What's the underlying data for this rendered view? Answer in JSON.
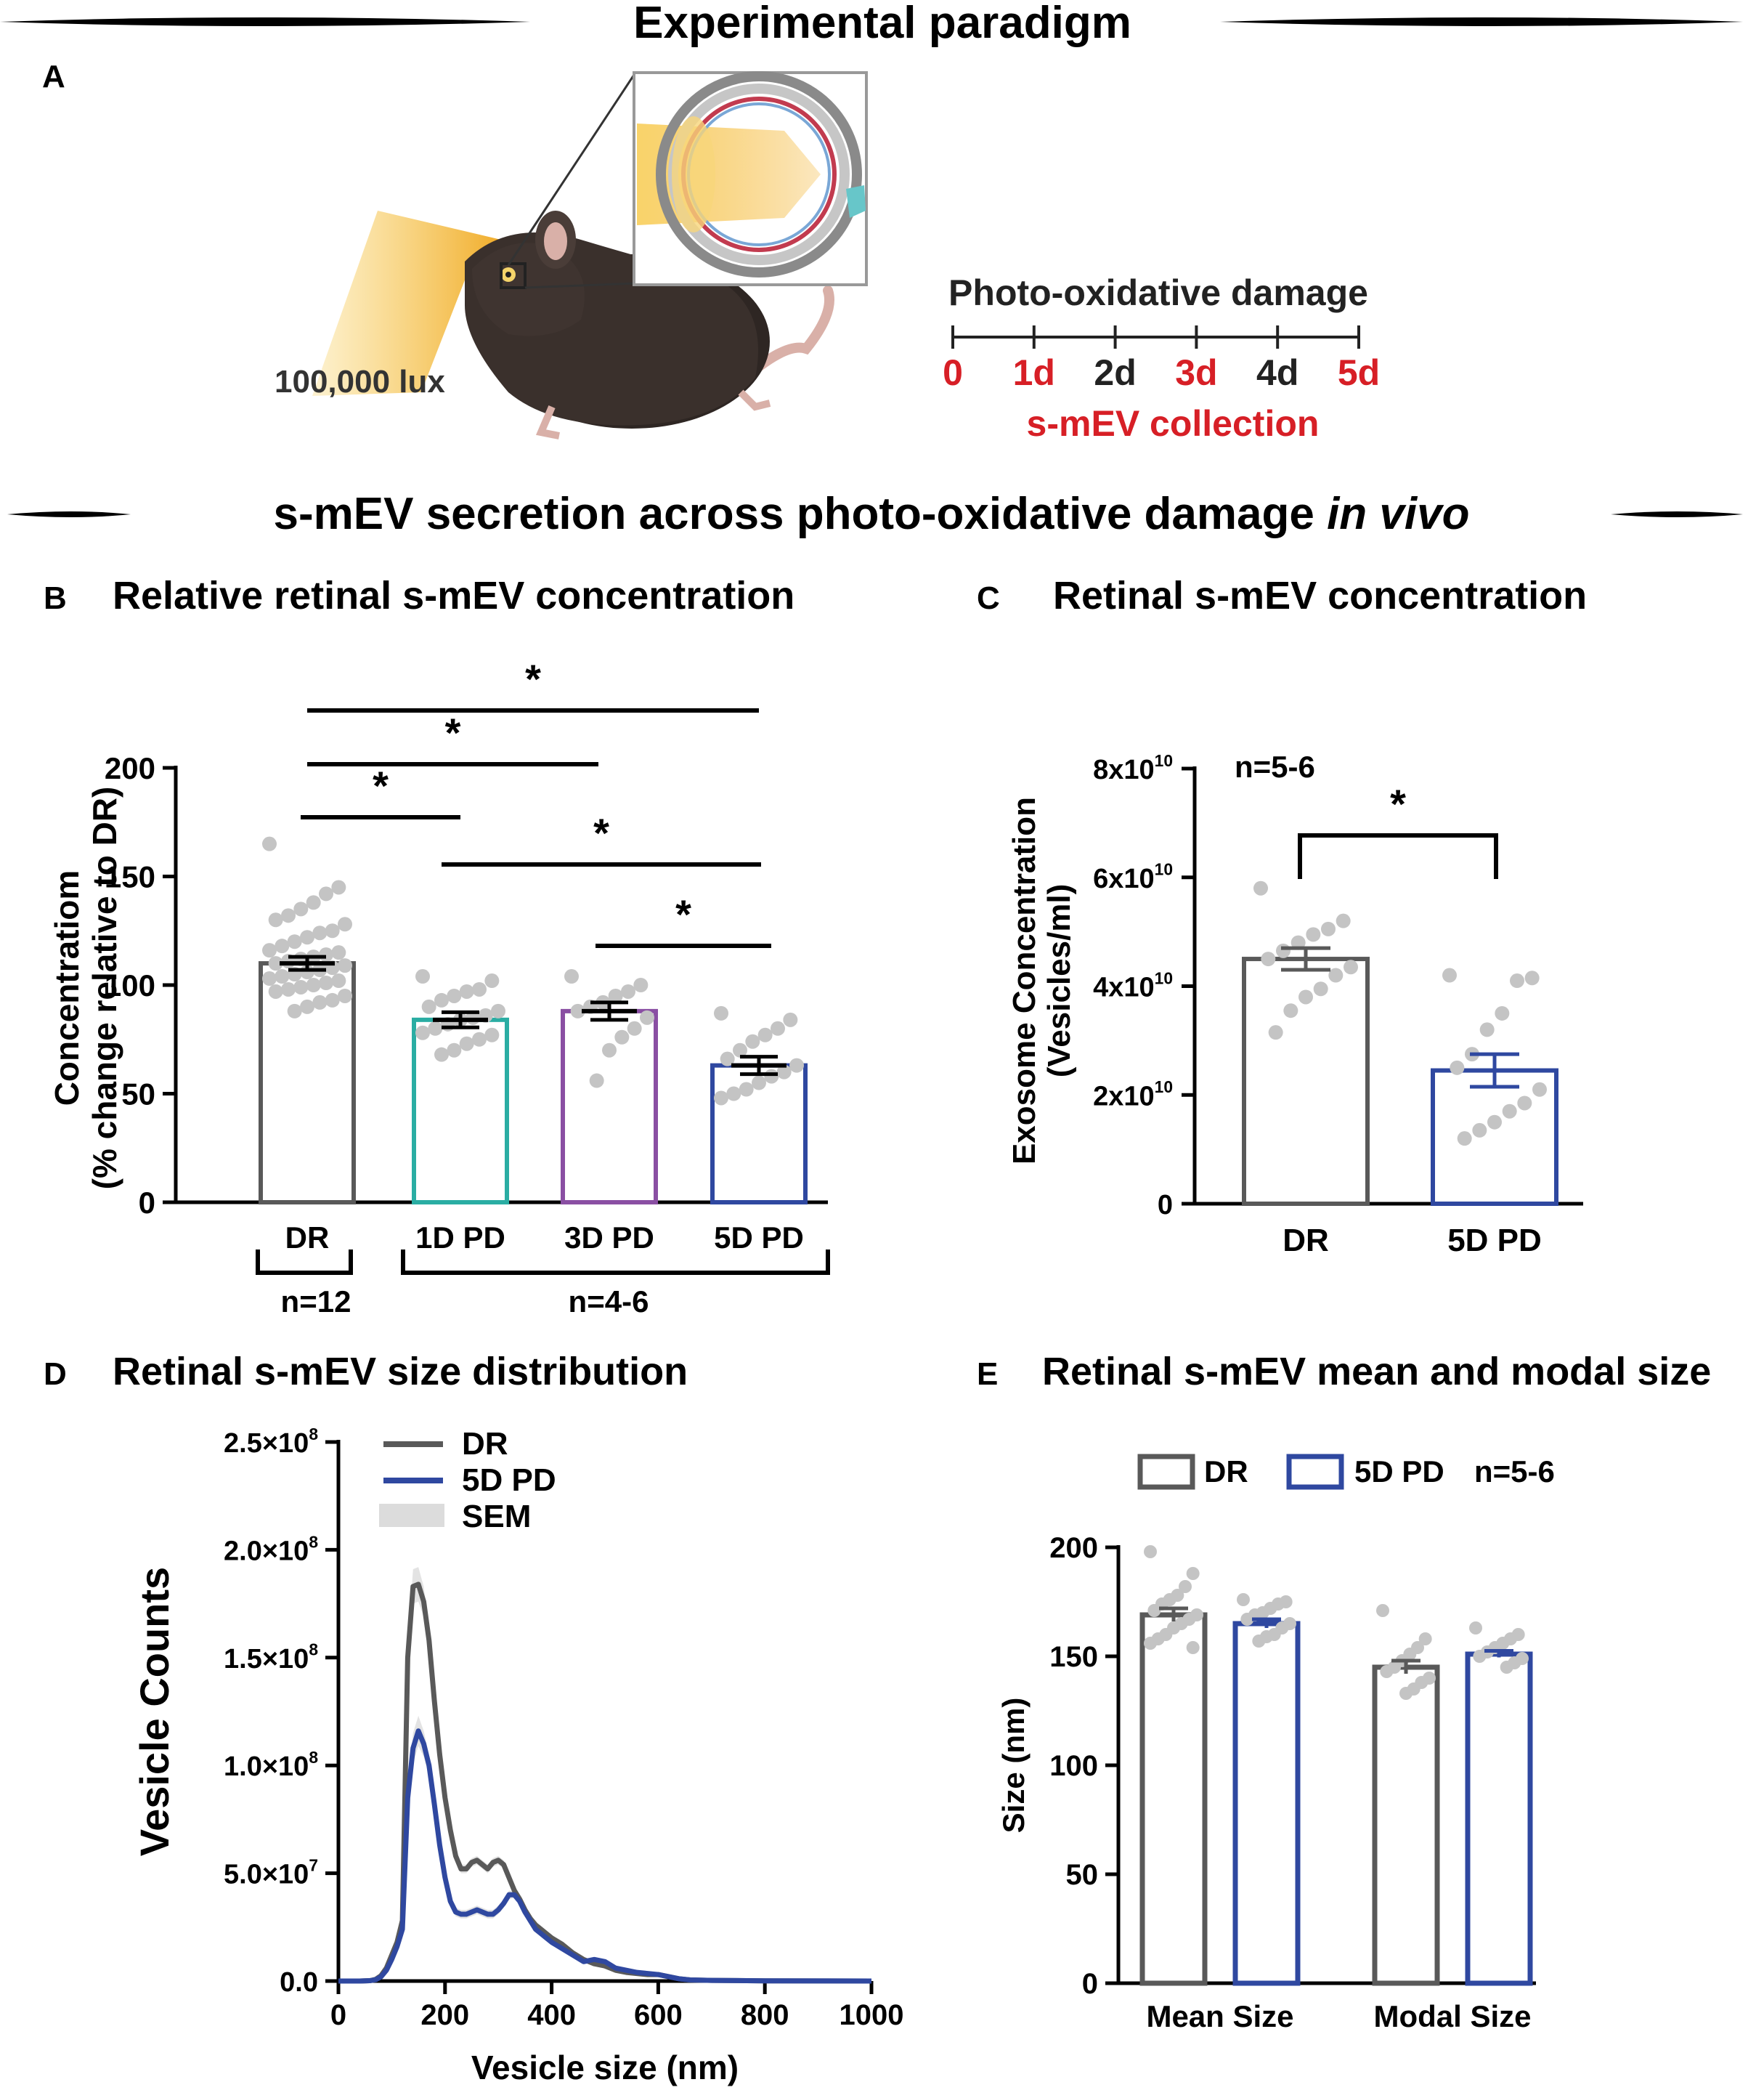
{
  "sections": {
    "top_title": "Experimental paradigm",
    "middle_title_main": "s-mEV secretion across photo-oxidative damage ",
    "middle_title_italic": "in vivo"
  },
  "panel_a": {
    "letter": "A",
    "lux_label": "100,000 lux",
    "timeline_title": "Photo-oxidative damage",
    "timeline_ticks": [
      {
        "label": "0",
        "collection": true
      },
      {
        "label": "1d",
        "collection": true
      },
      {
        "label": "2d",
        "collection": false
      },
      {
        "label": "3d",
        "collection": true
      },
      {
        "label": "4d",
        "collection": false
      },
      {
        "label": "5d",
        "collection": true
      }
    ],
    "collection_label": "s-mEV collection"
  },
  "colors": {
    "dr": "#595959",
    "pd1": "#2aada3",
    "pd3": "#8a4fa3",
    "pd5": "#2f48a0",
    "timeline_red": "#d71f26",
    "dots": "#c4c4c4",
    "sem": "#dcdcdc"
  },
  "panels_text": {
    "b": {
      "letter": "B",
      "title": "Relative retinal s-mEV concentration",
      "ylabel_line1": "Concentratiom",
      "ylabel_line2": "(% change relative to DR)",
      "n_dr": "n=12",
      "n_pd": "n=4-6"
    },
    "c": {
      "letter": "C",
      "title": "Retinal s-mEV concentration",
      "ylabel_line1": "Exosome Concentration",
      "ylabel_line2": "(Vesicles/ml)",
      "n_label": "n=5-6"
    },
    "d": {
      "letter": "D",
      "title": "Retinal s-mEV size distribution"
    },
    "e": {
      "letter": "E",
      "title": "Retinal s-mEV mean and modal size",
      "n_label": "n=5-6"
    }
  },
  "chart_data": [
    {
      "id": "B",
      "type": "bar",
      "title": "Relative retinal s-mEV concentration",
      "xlabel": "",
      "ylabel": "Concentratiom (% change relative to DR)",
      "ylim": [
        0,
        200
      ],
      "yticks": [
        0,
        50,
        100,
        150,
        200
      ],
      "categories": [
        "DR",
        "1D PD",
        "3D PD",
        "5D PD"
      ],
      "values": [
        110,
        84,
        88,
        63
      ],
      "sem": [
        3,
        3.5,
        4,
        4
      ],
      "points": [
        [
          165,
          145,
          142,
          138,
          135,
          132,
          130,
          128,
          125,
          124,
          122,
          120,
          118,
          116,
          115,
          114,
          113,
          112,
          111,
          110,
          109,
          108,
          107,
          106,
          105,
          104,
          103,
          102,
          101,
          100,
          99,
          98,
          97,
          95,
          93,
          92,
          90,
          88
        ],
        [
          104,
          102,
          98,
          97,
          95,
          93,
          90,
          88,
          86,
          85,
          84,
          82,
          80,
          78,
          77,
          75,
          73,
          70,
          68
        ],
        [
          104,
          100,
          97,
          95,
          92,
          90,
          88,
          85,
          80,
          76,
          70,
          56
        ],
        [
          87,
          84,
          80,
          77,
          74,
          70,
          66,
          63,
          60,
          58,
          55,
          52,
          50,
          48
        ]
      ],
      "significance": [
        {
          "from": "DR",
          "to": "5D PD",
          "label": "*"
        },
        {
          "from": "DR",
          "to": "3D PD",
          "label": "*"
        },
        {
          "from": "DR",
          "to": "1D PD",
          "label": "*"
        },
        {
          "from": "1D PD",
          "to": "5D PD",
          "label": "*"
        },
        {
          "from": "3D PD",
          "to": "5D PD",
          "label": "*"
        }
      ]
    },
    {
      "id": "C",
      "type": "bar",
      "title": "Retinal s-mEV concentration",
      "ylabel": "Exosome Concentration (Vesicles/ml)",
      "ylim": [
        0,
        80000000000.0
      ],
      "yticks": [
        {
          "value": 0,
          "base": "0",
          "exp": ""
        },
        {
          "value": 20000000000.0,
          "base": "2x10",
          "exp": "10"
        },
        {
          "value": 40000000000.0,
          "base": "4x10",
          "exp": "10"
        },
        {
          "value": 60000000000.0,
          "base": "6x10",
          "exp": "10"
        },
        {
          "value": 80000000000.0,
          "base": "8x10",
          "exp": "10"
        }
      ],
      "categories": [
        "DR",
        "5D PD"
      ],
      "values": [
        45000000000.0,
        24500000000.0
      ],
      "sem": [
        2000000000.0,
        3000000000.0
      ],
      "points": [
        [
          58000000000.0,
          52000000000.0,
          50500000000.0,
          49500000000.0,
          48000000000.0,
          46500000000.0,
          45000000000.0,
          43500000000.0,
          42000000000.0,
          39500000000.0,
          38000000000.0,
          35500000000.0,
          31500000000.0
        ],
        [
          42000000000.0,
          41500000000.0,
          41000000000.0,
          35000000000.0,
          32000000000.0,
          27500000000.0,
          25000000000.0,
          21000000000.0,
          18500000000.0,
          17000000000.0,
          15000000000.0,
          13500000000.0,
          12000000000.0
        ]
      ],
      "significance": [
        {
          "from": "DR",
          "to": "5D PD",
          "label": "*"
        }
      ]
    },
    {
      "id": "D",
      "type": "line",
      "title": "Retinal s-mEV size distribution",
      "xlabel": "Vesicle size (nm)",
      "ylabel": "Vesicle Counts",
      "xlim": [
        0,
        1000
      ],
      "ylim": [
        0,
        250000000.0
      ],
      "xticks": [
        "0",
        "200",
        "400",
        "600",
        "800",
        "1000"
      ],
      "ytick_labels": [
        "0.0",
        "5.0×10",
        "1.0×10",
        "1.5×10",
        "2.0×10",
        "2.5×10"
      ],
      "ytick_exps": [
        "",
        "7",
        "8",
        "8",
        "8",
        "8"
      ],
      "legend": [
        "DR",
        "5D PD",
        "SEM"
      ],
      "legend_position": "top-left",
      "x": [
        0,
        40,
        60,
        70,
        80,
        90,
        100,
        110,
        120,
        130,
        140,
        150,
        160,
        170,
        180,
        190,
        200,
        210,
        220,
        230,
        240,
        250,
        260,
        270,
        280,
        290,
        300,
        310,
        320,
        330,
        340,
        350,
        360,
        370,
        380,
        390,
        400,
        420,
        440,
        460,
        480,
        500,
        520,
        540,
        560,
        580,
        600,
        620,
        640,
        660,
        700,
        800,
        1000
      ],
      "series": [
        {
          "name": "DR",
          "values": [
            0,
            0,
            0.002,
            0.008,
            0.025,
            0.06,
            0.12,
            0.18,
            0.28,
            1.5,
            1.83,
            1.84,
            1.76,
            1.58,
            1.3,
            1.05,
            0.85,
            0.7,
            0.58,
            0.52,
            0.52,
            0.55,
            0.56,
            0.54,
            0.52,
            0.55,
            0.56,
            0.54,
            0.48,
            0.42,
            0.38,
            0.33,
            0.29,
            0.26,
            0.24,
            0.22,
            0.2,
            0.17,
            0.13,
            0.1,
            0.08,
            0.07,
            0.05,
            0.04,
            0.035,
            0.03,
            0.03,
            0.02,
            0.01,
            0.005,
            0.003,
            0.001,
            0
          ],
          "sem": [
            0,
            0,
            0.001,
            0.002,
            0.004,
            0.008,
            0.012,
            0.02,
            0.03,
            0.05,
            0.08,
            0.08,
            0.07,
            0.06,
            0.05,
            0.04,
            0.03,
            0.025,
            0.02,
            0.02,
            0.02,
            0.02,
            0.02,
            0.02,
            0.02,
            0.02,
            0.02,
            0.02,
            0.02,
            0.015,
            0.015,
            0.012,
            0.01,
            0.01,
            0.01,
            0.008,
            0.008,
            0.007,
            0.006,
            0.005,
            0.004,
            0.004,
            0.003,
            0.003,
            0.002,
            0.002,
            0.002,
            0.002,
            0.001,
            0.001,
            0.001,
            0.001,
            0
          ]
        },
        {
          "name": "5D PD",
          "values": [
            0,
            0,
            0.002,
            0.006,
            0.02,
            0.05,
            0.1,
            0.16,
            0.24,
            0.85,
            1.08,
            1.16,
            1.1,
            1.0,
            0.82,
            0.63,
            0.48,
            0.37,
            0.32,
            0.31,
            0.31,
            0.32,
            0.33,
            0.32,
            0.31,
            0.31,
            0.33,
            0.36,
            0.4,
            0.4,
            0.37,
            0.32,
            0.28,
            0.24,
            0.22,
            0.2,
            0.18,
            0.15,
            0.12,
            0.09,
            0.1,
            0.09,
            0.06,
            0.05,
            0.04,
            0.035,
            0.03,
            0.02,
            0.01,
            0.005,
            0.003,
            0.001,
            0
          ],
          "sem": [
            0,
            0,
            0.001,
            0.002,
            0.004,
            0.008,
            0.012,
            0.02,
            0.03,
            0.05,
            0.07,
            0.07,
            0.06,
            0.05,
            0.04,
            0.03,
            0.025,
            0.02,
            0.02,
            0.02,
            0.02,
            0.02,
            0.02,
            0.02,
            0.02,
            0.02,
            0.02,
            0.02,
            0.02,
            0.015,
            0.015,
            0.012,
            0.01,
            0.01,
            0.01,
            0.008,
            0.008,
            0.007,
            0.006,
            0.005,
            0.004,
            0.004,
            0.003,
            0.003,
            0.002,
            0.002,
            0.002,
            0.002,
            0.001,
            0.001,
            0.001,
            0.001,
            0
          ]
        }
      ],
      "value_unit": "1e8 vesicles"
    },
    {
      "id": "E",
      "type": "bar",
      "title": "Retinal s-mEV mean and modal size",
      "ylabel": "Size (nm)",
      "ylim": [
        0,
        200
      ],
      "yticks": [
        0,
        50,
        100,
        150,
        200
      ],
      "categories": [
        "Mean Size",
        "Modal Size"
      ],
      "legend": [
        "DR",
        "5D PD"
      ],
      "series": [
        {
          "name": "DR",
          "values": [
            169,
            145
          ],
          "sem": [
            3,
            3
          ]
        },
        {
          "name": "5D PD",
          "values": [
            165,
            151
          ],
          "sem": [
            2,
            1.5
          ]
        }
      ],
      "points": {
        "DR": [
          [
            198,
            188,
            182,
            178,
            176,
            174,
            171,
            169,
            167,
            165,
            163,
            160,
            158,
            156,
            154
          ],
          [
            171,
            158,
            154,
            151,
            148,
            145,
            143,
            140,
            138,
            135,
            133
          ]
        ],
        "5D PD": [
          [
            176,
            175,
            174,
            172,
            170,
            169,
            167,
            165,
            163,
            160,
            159,
            157
          ],
          [
            163,
            160,
            158,
            156,
            154,
            152,
            150,
            149,
            147,
            145
          ]
        ]
      }
    }
  ]
}
